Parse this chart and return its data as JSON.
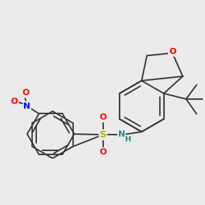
{
  "background_color": "#ebebeb",
  "bond_color": "#3a3a3a",
  "bond_width": 1.5,
  "atom_colors": {
    "O": "#ff0000",
    "N": "#0000ff",
    "N_teal": "#2e8b8b",
    "S": "#b8b800",
    "H": "#2e8b8b"
  },
  "figsize": [
    3.0,
    3.0
  ],
  "dpi": 100
}
